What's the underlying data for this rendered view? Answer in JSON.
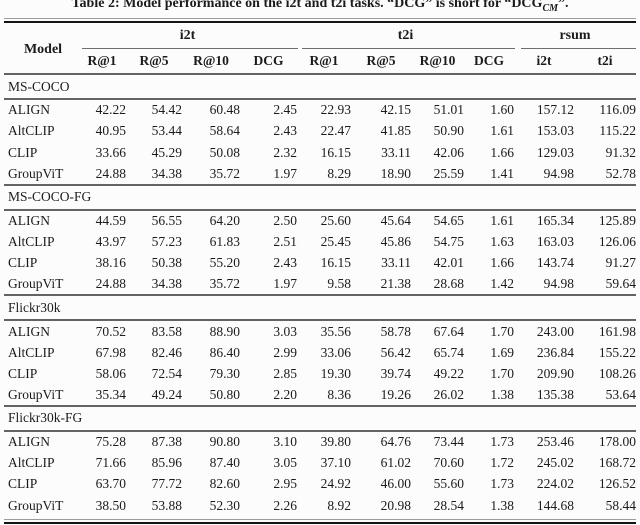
{
  "caption": {
    "prefix": "Table 2: Model performance on the i2t and t2i tasks. “DCG” is short for “DCG",
    "subscript": "CM",
    "suffix": "”."
  },
  "table": {
    "model_header": "Model",
    "groups": [
      {
        "label": "i2t"
      },
      {
        "label": "t2i"
      },
      {
        "label": "rsum"
      }
    ],
    "subheaders": [
      "R@1",
      "R@5",
      "R@10",
      "DCG",
      "R@1",
      "R@5",
      "R@10",
      "DCG",
      "i2t",
      "t2i"
    ],
    "sections": [
      {
        "name": "MS-COCO",
        "rows": [
          {
            "model": "ALIGN",
            "values": [
              "42.22",
              "54.42",
              "60.48",
              "2.45",
              "22.93",
              "42.15",
              "51.01",
              "1.60",
              "157.12",
              "116.09"
            ]
          },
          {
            "model": "AltCLIP",
            "values": [
              "40.95",
              "53.44",
              "58.64",
              "2.43",
              "22.47",
              "41.85",
              "50.90",
              "1.61",
              "153.03",
              "115.22"
            ]
          },
          {
            "model": "CLIP",
            "values": [
              "33.66",
              "45.29",
              "50.08",
              "2.32",
              "16.15",
              "33.11",
              "42.06",
              "1.66",
              "129.03",
              "91.32"
            ]
          },
          {
            "model": "GroupViT",
            "values": [
              "24.88",
              "34.38",
              "35.72",
              "1.97",
              "8.29",
              "18.90",
              "25.59",
              "1.41",
              "94.98",
              "52.78"
            ]
          }
        ]
      },
      {
        "name": "MS-COCO-FG",
        "rows": [
          {
            "model": "ALIGN",
            "values": [
              "44.59",
              "56.55",
              "64.20",
              "2.50",
              "25.60",
              "45.64",
              "54.65",
              "1.61",
              "165.34",
              "125.89"
            ]
          },
          {
            "model": "AltCLIP",
            "values": [
              "43.97",
              "57.23",
              "61.83",
              "2.51",
              "25.45",
              "45.86",
              "54.75",
              "1.63",
              "163.03",
              "126.06"
            ]
          },
          {
            "model": "CLIP",
            "values": [
              "38.16",
              "50.38",
              "55.20",
              "2.43",
              "16.15",
              "33.11",
              "42.01",
              "1.66",
              "143.74",
              "91.27"
            ]
          },
          {
            "model": "GroupViT",
            "values": [
              "24.88",
              "34.38",
              "35.72",
              "1.97",
              "9.58",
              "21.38",
              "28.68",
              "1.42",
              "94.98",
              "59.64"
            ]
          }
        ]
      },
      {
        "name": "Flickr30k",
        "rows": [
          {
            "model": "ALIGN",
            "values": [
              "70.52",
              "83.58",
              "88.90",
              "3.03",
              "35.56",
              "58.78",
              "67.64",
              "1.70",
              "243.00",
              "161.98"
            ]
          },
          {
            "model": "AltCLIP",
            "values": [
              "67.98",
              "82.46",
              "86.40",
              "2.99",
              "33.06",
              "56.42",
              "65.74",
              "1.69",
              "236.84",
              "155.22"
            ]
          },
          {
            "model": "CLIP",
            "values": [
              "58.06",
              "72.54",
              "79.30",
              "2.85",
              "19.30",
              "39.74",
              "49.22",
              "1.70",
              "209.90",
              "108.26"
            ]
          },
          {
            "model": "GroupViT",
            "values": [
              "35.34",
              "49.24",
              "50.80",
              "2.20",
              "8.36",
              "19.26",
              "26.02",
              "1.38",
              "135.38",
              "53.64"
            ]
          }
        ]
      },
      {
        "name": "Flickr30k-FG",
        "rows": [
          {
            "model": "ALIGN",
            "values": [
              "75.28",
              "87.38",
              "90.80",
              "3.10",
              "39.80",
              "64.76",
              "73.44",
              "1.73",
              "253.46",
              "178.00"
            ]
          },
          {
            "model": "AltCLIP",
            "values": [
              "71.66",
              "85.96",
              "87.40",
              "3.05",
              "37.10",
              "61.02",
              "70.60",
              "1.72",
              "245.02",
              "168.72"
            ]
          },
          {
            "model": "CLIP",
            "values": [
              "63.70",
              "77.72",
              "82.60",
              "2.95",
              "24.92",
              "46.00",
              "55.60",
              "1.73",
              "224.02",
              "126.52"
            ]
          },
          {
            "model": "GroupViT",
            "values": [
              "38.50",
              "53.88",
              "52.30",
              "2.26",
              "8.92",
              "20.98",
              "28.54",
              "1.38",
              "144.68",
              "58.44"
            ]
          }
        ]
      }
    ]
  }
}
